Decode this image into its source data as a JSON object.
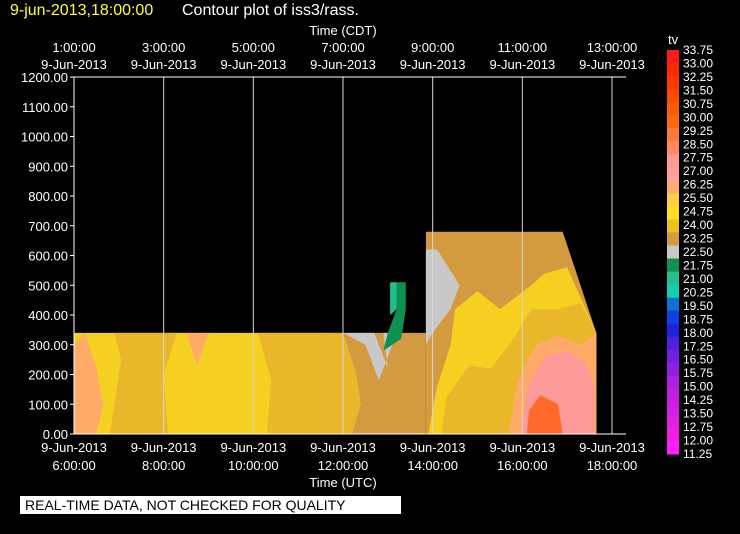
{
  "header": {
    "date": "9-jun-2013,18:00:00",
    "title": "Contour plot of iss3/rass."
  },
  "footer": {
    "disclaimer": "REAL-TIME DATA, NOT CHECKED FOR QUALITY"
  },
  "chart_data": {
    "type": "heatmap",
    "title": "Contour plot of iss3/rass.",
    "x_top_label": "Time (CDT)",
    "x_bottom_label": "Time (UTC)",
    "x_hours_utc": [
      6,
      8,
      10,
      12,
      14,
      16,
      18
    ],
    "x_top_ticks": [
      {
        "date": "9-Jun-2013",
        "time": "1:00:00"
      },
      {
        "date": "9-Jun-2013",
        "time": "3:00:00"
      },
      {
        "date": "9-Jun-2013",
        "time": "5:00:00"
      },
      {
        "date": "9-Jun-2013",
        "time": "7:00:00"
      },
      {
        "date": "9-Jun-2013",
        "time": "9:00:00"
      },
      {
        "date": "9-Jun-2013",
        "time": "11:00:00"
      },
      {
        "date": "9-Jun-2013",
        "time": "13:00:00"
      }
    ],
    "x_bottom_ticks": [
      {
        "date": "9-Jun-2013",
        "time": "6:00:00"
      },
      {
        "date": "9-Jun-2013",
        "time": "8:00:00"
      },
      {
        "date": "9-Jun-2013",
        "time": "10:00:00"
      },
      {
        "date": "9-Jun-2013",
        "time": "12:00:00"
      },
      {
        "date": "9-Jun-2013",
        "time": "14:00:00"
      },
      {
        "date": "9-Jun-2013",
        "time": "16:00:00"
      },
      {
        "date": "9-Jun-2013",
        "time": "18:00:00"
      }
    ],
    "y_ticks": [
      "0.00",
      "100.00",
      "200.00",
      "300.00",
      "400.00",
      "500.00",
      "600.00",
      "700.00",
      "800.00",
      "900.00",
      "1000.00",
      "1100.00",
      "1200.00"
    ],
    "ylim": [
      0,
      1200
    ],
    "xlim_hours_utc": [
      6,
      18
    ],
    "grid": true,
    "colorbar": {
      "label": "tv",
      "levels": [
        "33.75",
        "33.00",
        "32.25",
        "31.50",
        "30.75",
        "30.00",
        "29.25",
        "28.50",
        "27.75",
        "27.00",
        "26.25",
        "25.50",
        "24.75",
        "24.00",
        "23.25",
        "22.50",
        "21.75",
        "21.00",
        "20.25",
        "19.50",
        "18.75",
        "18.00",
        "17.25",
        "16.50",
        "15.75",
        "15.00",
        "14.25",
        "13.50",
        "12.75",
        "12.00",
        "11.25"
      ],
      "colors": [
        "#ff1a1a",
        "#ff2a00",
        "#ff3a00",
        "#ff4a00",
        "#ff5a00",
        "#ff6a10",
        "#ff7a3a",
        "#ff8a60",
        "#ff9a90",
        "#ffa0a0",
        "#ffaa70",
        "#ffd040",
        "#ffe020",
        "#f0c020",
        "#d49a40",
        "#c8c8c8",
        "#109050",
        "#20c090",
        "#10d0b0",
        "#1070d0",
        "#1040e0",
        "#2020e0",
        "#5020e0",
        "#7020e0",
        "#9020e0",
        "#b020e0",
        "#c020e0",
        "#d020e0",
        "#e020e0",
        "#f020e0",
        "#ff20ff"
      ]
    },
    "regions": [
      {
        "color": "#f5d020",
        "points": [
          [
            6.0,
            0
          ],
          [
            6.0,
            340
          ],
          [
            11.5,
            340
          ],
          [
            11.5,
            0
          ]
        ]
      },
      {
        "color": "#ffaa66",
        "points": [
          [
            6.0,
            0
          ],
          [
            6.0,
            300
          ],
          [
            6.25,
            340
          ],
          [
            6.5,
            220
          ],
          [
            6.65,
            100
          ],
          [
            6.5,
            0
          ]
        ]
      },
      {
        "color": "#e8b82a",
        "points": [
          [
            6.8,
            0
          ],
          [
            7.05,
            250
          ],
          [
            6.9,
            340
          ],
          [
            8.3,
            340
          ],
          [
            8.0,
            200
          ],
          [
            8.1,
            0
          ]
        ]
      },
      {
        "color": "#ffaa66",
        "points": [
          [
            8.5,
            340
          ],
          [
            9.0,
            340
          ],
          [
            8.75,
            230
          ]
        ]
      },
      {
        "color": "#e8b82a",
        "points": [
          [
            10.3,
            0
          ],
          [
            10.4,
            180
          ],
          [
            10.1,
            340
          ],
          [
            11.6,
            340
          ],
          [
            11.5,
            0
          ]
        ]
      },
      {
        "color": "#d49a40",
        "points": [
          [
            11.5,
            0
          ],
          [
            11.5,
            340
          ],
          [
            13.85,
            340
          ],
          [
            13.85,
            0
          ]
        ]
      },
      {
        "color": "#e8b82a",
        "points": [
          [
            12.2,
            0
          ],
          [
            12.4,
            100
          ],
          [
            12.3,
            200
          ],
          [
            12.0,
            340
          ],
          [
            11.5,
            340
          ],
          [
            11.5,
            0
          ]
        ]
      },
      {
        "color": "#c8c8c8",
        "points": [
          [
            12.0,
            340
          ],
          [
            12.7,
            340
          ],
          [
            13.0,
            220
          ],
          [
            12.9,
            340
          ],
          [
            13.2,
            340
          ],
          [
            12.8,
            180
          ],
          [
            12.5,
            300
          ]
        ]
      },
      {
        "color": "#d49a40",
        "points": [
          [
            13.85,
            0
          ],
          [
            13.85,
            680
          ],
          [
            16.9,
            680
          ],
          [
            17.65,
            340
          ],
          [
            17.65,
            0
          ]
        ]
      },
      {
        "color": "#f5d020",
        "points": [
          [
            13.9,
            0
          ],
          [
            14.1,
            160
          ],
          [
            14.4,
            300
          ],
          [
            14.5,
            420
          ],
          [
            15.0,
            480
          ],
          [
            15.5,
            420
          ],
          [
            16.2,
            500
          ],
          [
            16.5,
            540
          ],
          [
            17.0,
            560
          ],
          [
            17.65,
            340
          ],
          [
            17.65,
            0
          ]
        ]
      },
      {
        "color": "#e8b82a",
        "points": [
          [
            14.2,
            0
          ],
          [
            14.3,
            120
          ],
          [
            14.8,
            230
          ],
          [
            15.3,
            220
          ],
          [
            15.8,
            320
          ],
          [
            16.2,
            420
          ],
          [
            16.8,
            420
          ],
          [
            17.3,
            440
          ],
          [
            17.65,
            340
          ],
          [
            17.65,
            0
          ]
        ]
      },
      {
        "color": "#ffaa66",
        "points": [
          [
            15.7,
            0
          ],
          [
            15.9,
            180
          ],
          [
            16.3,
            300
          ],
          [
            16.8,
            330
          ],
          [
            17.3,
            300
          ],
          [
            17.65,
            340
          ],
          [
            17.65,
            0
          ]
        ]
      },
      {
        "color": "#ff9a9a",
        "points": [
          [
            16.0,
            0
          ],
          [
            16.1,
            150
          ],
          [
            16.5,
            260
          ],
          [
            17.0,
            280
          ],
          [
            17.4,
            240
          ],
          [
            17.6,
            160
          ],
          [
            17.6,
            0
          ]
        ]
      },
      {
        "color": "#ff6a2a",
        "points": [
          [
            16.1,
            0
          ],
          [
            16.15,
            80
          ],
          [
            16.4,
            130
          ],
          [
            16.8,
            100
          ],
          [
            16.9,
            0
          ]
        ]
      },
      {
        "color": "#c8c8c8",
        "points": [
          [
            13.85,
            300
          ],
          [
            13.85,
            620
          ],
          [
            14.1,
            620
          ],
          [
            14.6,
            500
          ],
          [
            14.4,
            420
          ],
          [
            14.2,
            380
          ],
          [
            14.0,
            340
          ]
        ]
      },
      {
        "color": "#109050",
        "points": [
          [
            12.9,
            280
          ],
          [
            13.0,
            340
          ],
          [
            13.2,
            420
          ],
          [
            13.2,
            510
          ],
          [
            13.4,
            510
          ],
          [
            13.4,
            420
          ],
          [
            13.3,
            320
          ]
        ]
      },
      {
        "color": "#20c090",
        "points": [
          [
            13.05,
            400
          ],
          [
            13.05,
            510
          ],
          [
            13.2,
            510
          ],
          [
            13.2,
            420
          ]
        ]
      }
    ]
  }
}
